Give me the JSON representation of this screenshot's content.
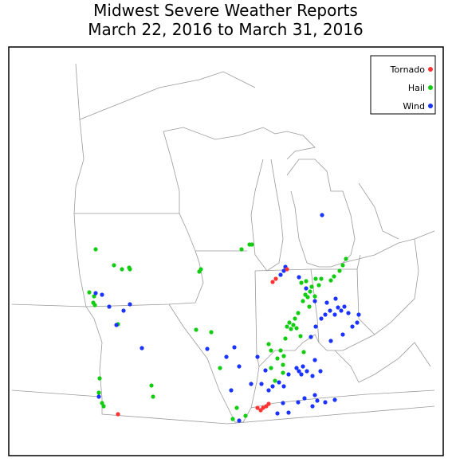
{
  "header": {
    "title_line1": "Midwest Severe Weather Reports",
    "title_line2": "March 22, 2016 to March 31, 2016"
  },
  "legend": [
    {
      "label": "Tornado",
      "color": "#ff3333"
    },
    {
      "label": "Hail",
      "color": "#11cc11"
    },
    {
      "label": "Wind",
      "color": "#1a33ff"
    }
  ]
}
